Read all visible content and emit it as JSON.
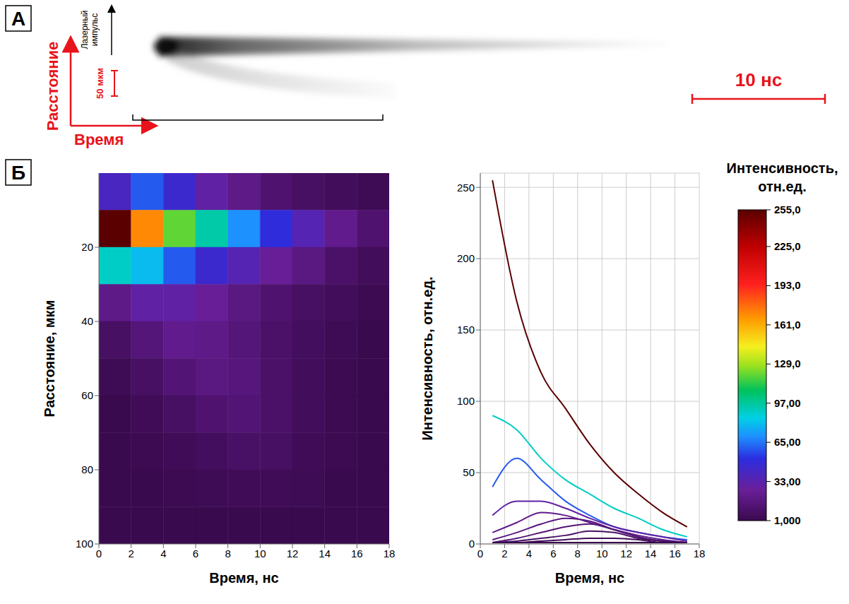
{
  "panel_a": {
    "letter": "А",
    "y_arrow_label": "Расстояние",
    "x_arrow_label": "Время",
    "pulse_label": "Лазерный импульс",
    "distance_scale": "50 мкм",
    "time_scale": "10 нс"
  },
  "chart_data": {
    "type": "heatmap",
    "panel": "Б",
    "xlabel": "Время, нс",
    "ylabel": "Расстояние, мкм",
    "zlabel": "Интенсивность, отн.ед.",
    "x": [
      1,
      3,
      5,
      7,
      9,
      11,
      13,
      15,
      17
    ],
    "y": [
      5,
      15,
      25,
      35,
      45,
      55,
      65,
      75,
      85,
      95
    ],
    "intensity": [
      [
        40,
        60,
        45,
        30,
        20,
        12,
        8,
        5,
        3
      ],
      [
        255,
        170,
        120,
        95,
        70,
        50,
        35,
        22,
        12
      ],
      [
        90,
        80,
        60,
        45,
        35,
        25,
        18,
        10,
        5
      ],
      [
        20,
        30,
        30,
        25,
        18,
        12,
        8,
        5,
        2
      ],
      [
        8,
        15,
        22,
        20,
        15,
        10,
        6,
        3,
        1
      ],
      [
        3,
        8,
        14,
        18,
        16,
        10,
        5,
        2,
        1
      ],
      [
        1,
        4,
        8,
        12,
        14,
        10,
        5,
        2,
        1
      ],
      [
        1,
        2,
        4,
        6,
        9,
        8,
        4,
        2,
        1
      ],
      [
        1,
        1,
        2,
        3,
        4,
        4,
        3,
        1,
        1
      ],
      [
        1,
        1,
        1,
        1,
        1,
        1,
        1,
        1,
        1
      ]
    ],
    "xlim": [
      0,
      18
    ],
    "xticks": [
      0,
      2,
      4,
      6,
      8,
      10,
      12,
      14,
      16,
      18
    ],
    "ylim": [
      0,
      100
    ],
    "yticks": [
      20,
      40,
      60,
      80,
      100
    ],
    "zlim": [
      0,
      260
    ],
    "zticks": [
      0,
      50,
      100,
      150,
      200,
      250
    ],
    "grid": true,
    "colorbar": {
      "label": "Интенсивность, отн.ед.",
      "range": [
        1,
        255
      ],
      "ticks": [
        {
          "value": 1,
          "label": "1,000"
        },
        {
          "value": 33,
          "label": "33,00"
        },
        {
          "value": 65,
          "label": "65,00"
        },
        {
          "value": 97,
          "label": "97,00"
        },
        {
          "value": 129,
          "label": "129,0"
        },
        {
          "value": 161,
          "label": "161,0"
        },
        {
          "value": 193,
          "label": "193,0"
        },
        {
          "value": 225,
          "label": "225,0"
        },
        {
          "value": 255,
          "label": "255,0"
        }
      ]
    }
  }
}
